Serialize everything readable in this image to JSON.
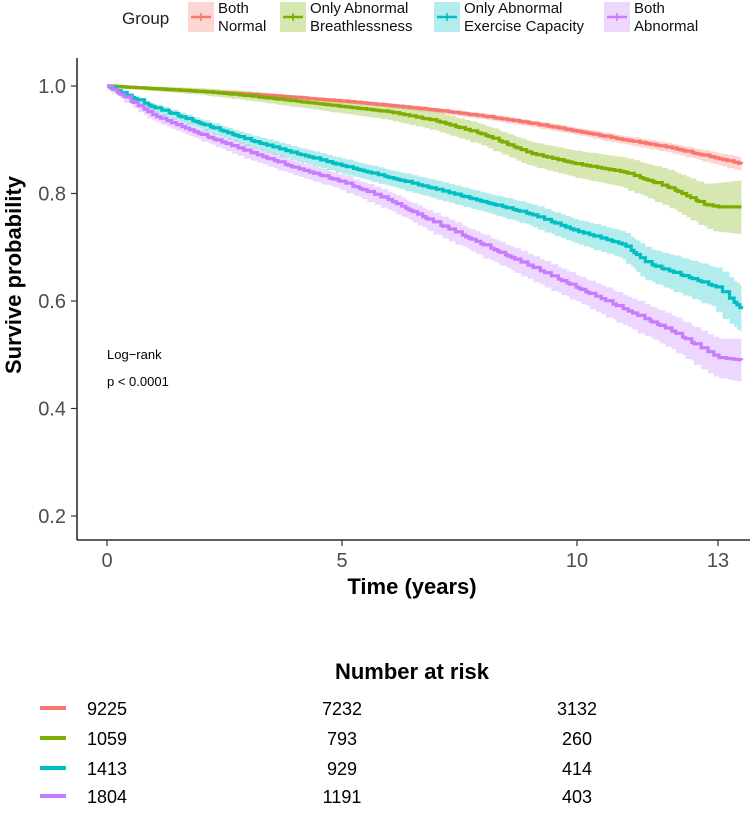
{
  "chart_data": {
    "type": "line",
    "subtype": "kaplan-meier",
    "title": "",
    "xlabel": "Time (years)",
    "ylabel": "Survive probability",
    "xlim": [
      -0.8,
      13.6
    ],
    "ylim": [
      0.15,
      1.05
    ],
    "x_ticks": [
      0,
      5,
      10,
      13
    ],
    "y_ticks": [
      0.2,
      0.4,
      0.6,
      0.8,
      1.0
    ],
    "y_tick_labels": [
      "0.2",
      "0.4",
      "0.6",
      "0.8",
      "1.0"
    ],
    "legend": {
      "title": "Group",
      "placement": "top",
      "entries": [
        {
          "line1": "Both",
          "line2": "Normal"
        },
        {
          "line1": "Only Abnormal",
          "line2": "Breathlessness"
        },
        {
          "line1": "Only Abnormal",
          "line2": "Exercise Capacity"
        },
        {
          "line1": "Both",
          "line2": "Abnormal"
        }
      ]
    },
    "annotation": {
      "line1": "Log−rank",
      "line2": "p < 0.0001"
    },
    "series": [
      {
        "name": "Both Normal",
        "color": "#F8766D",
        "x": [
          0,
          1,
          2,
          3,
          4,
          5,
          6,
          7,
          8,
          9,
          10,
          11,
          12,
          13,
          13.5
        ],
        "y": [
          1.0,
          0.995,
          0.99,
          0.985,
          0.979,
          0.972,
          0.964,
          0.955,
          0.944,
          0.931,
          0.916,
          0.9,
          0.885,
          0.865,
          0.855
        ],
        "ci_width": [
          0,
          0.002,
          0.002,
          0.003,
          0.003,
          0.003,
          0.004,
          0.004,
          0.005,
          0.005,
          0.006,
          0.007,
          0.008,
          0.01,
          0.012
        ]
      },
      {
        "name": "Only Abnormal Breathlessness",
        "color": "#7CAE00",
        "x": [
          0,
          1,
          2,
          3,
          4,
          5,
          6,
          7,
          8,
          9,
          10,
          11,
          12,
          12.7,
          13,
          13.5
        ],
        "y": [
          1.0,
          0.995,
          0.99,
          0.982,
          0.972,
          0.962,
          0.952,
          0.935,
          0.91,
          0.875,
          0.855,
          0.84,
          0.81,
          0.78,
          0.775,
          0.775
        ],
        "ci_width": [
          0,
          0.004,
          0.006,
          0.008,
          0.01,
          0.012,
          0.014,
          0.016,
          0.018,
          0.021,
          0.024,
          0.027,
          0.033,
          0.038,
          0.045,
          0.05
        ]
      },
      {
        "name": "Only Abnormal Exercise Capacity",
        "color": "#00BFC4",
        "x": [
          0,
          1,
          2,
          3,
          4,
          5,
          6,
          7,
          8,
          9,
          10,
          11,
          11.5,
          12,
          13,
          13.5
        ],
        "y": [
          1.0,
          0.96,
          0.93,
          0.9,
          0.875,
          0.852,
          0.83,
          0.808,
          0.785,
          0.762,
          0.73,
          0.705,
          0.67,
          0.655,
          0.625,
          0.585
        ],
        "ci_width": [
          0,
          0.006,
          0.008,
          0.01,
          0.012,
          0.013,
          0.014,
          0.016,
          0.017,
          0.019,
          0.021,
          0.024,
          0.028,
          0.031,
          0.036,
          0.042
        ]
      },
      {
        "name": "Both Abnormal",
        "color": "#C77CFF",
        "x": [
          0,
          1,
          2,
          3,
          4,
          5,
          6,
          7,
          8,
          9,
          10,
          11,
          12,
          12.7,
          13,
          13.5
        ],
        "y": [
          1.0,
          0.945,
          0.91,
          0.878,
          0.848,
          0.822,
          0.788,
          0.745,
          0.705,
          0.665,
          0.625,
          0.585,
          0.545,
          0.51,
          0.495,
          0.49
        ],
        "ci_width": [
          0,
          0.007,
          0.009,
          0.011,
          0.012,
          0.013,
          0.015,
          0.017,
          0.019,
          0.021,
          0.023,
          0.026,
          0.029,
          0.032,
          0.035,
          0.04
        ]
      }
    ],
    "risk_table": {
      "title": "Number at risk",
      "time_points": [
        0,
        5,
        10
      ],
      "rows": [
        {
          "color": "#F8766D",
          "values": [
            9225,
            7232,
            3132
          ]
        },
        {
          "color": "#7CAE00",
          "values": [
            1059,
            793,
            260
          ]
        },
        {
          "color": "#00BFC4",
          "values": [
            1413,
            929,
            414
          ]
        },
        {
          "color": "#C77CFF",
          "values": [
            1804,
            1191,
            403
          ]
        }
      ]
    }
  }
}
